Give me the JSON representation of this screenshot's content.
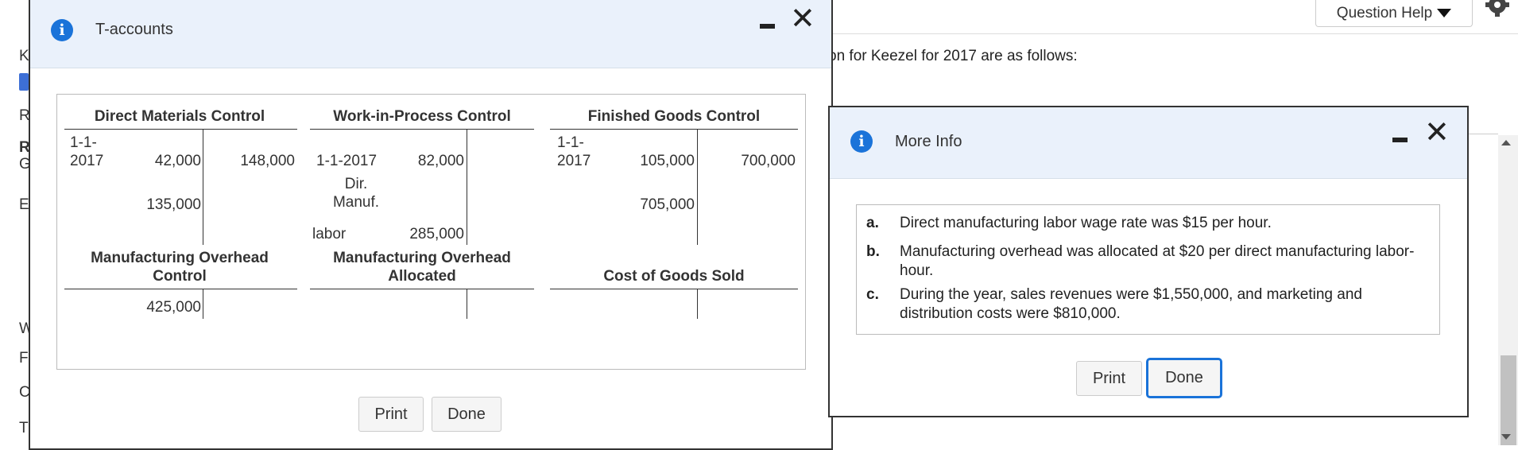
{
  "background": {
    "instructions_fragment": "on for Keezel for 2017 are as follows:",
    "side_letters": [
      "K",
      "R",
      "R",
      "G",
      "E",
      "W",
      "F",
      "C",
      "T"
    ],
    "question_help_label": "Question Help"
  },
  "t_accounts_dialog": {
    "title": "T-accounts",
    "accounts": {
      "direct_materials": {
        "title": "Direct Materials Control",
        "debit_rows": [
          {
            "label": "1-1-\n2017",
            "value": "42,000"
          },
          {
            "label": "",
            "value": "135,000"
          }
        ],
        "credit_rows": [
          {
            "value": "148,000"
          }
        ]
      },
      "work_in_process": {
        "title": "Work-in-Process Control",
        "debit_rows": [
          {
            "label": "1-1-2017",
            "value": "82,000"
          },
          {
            "label": "Dir.\nManuf.",
            "value": ""
          },
          {
            "label": "labor",
            "value": "285,000"
          }
        ]
      },
      "finished_goods": {
        "title": "Finished Goods Control",
        "debit_rows": [
          {
            "label": "1-1-\n2017",
            "value": "105,000"
          },
          {
            "label": "",
            "value": "705,000"
          }
        ],
        "credit_rows": [
          {
            "value": "700,000"
          }
        ]
      },
      "mfg_overhead_control": {
        "title": "Manufacturing Overhead\nControl",
        "debit_rows": [
          {
            "label": "",
            "value": "425,000"
          }
        ]
      },
      "mfg_overhead_allocated": {
        "title": "Manufacturing Overhead\nAllocated"
      },
      "cost_of_goods_sold": {
        "title": "Cost of Goods Sold"
      }
    },
    "print_label": "Print",
    "done_label": "Done"
  },
  "more_info_dialog": {
    "title": "More Info",
    "items": [
      {
        "label": "a.",
        "text": "Direct manufacturing labor wage rate was $15 per hour."
      },
      {
        "label": "b.",
        "text": "Manufacturing overhead was allocated at $20 per direct manufacturing labor-hour."
      },
      {
        "label": "c.",
        "text": "During the year, sales revenues were $1,550,000, and marketing and distribution costs were $810,000."
      }
    ],
    "print_label": "Print",
    "done_label": "Done"
  },
  "colors": {
    "accent": "#1a73d9",
    "header_bg": "#eaf1fb"
  }
}
